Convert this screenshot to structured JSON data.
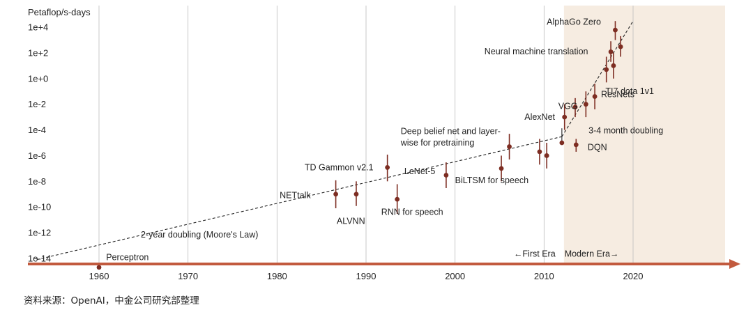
{
  "colors": {
    "modern_bg": "#f6ece1",
    "marker": "#7d2d22",
    "axis_arrow": "#c25a3e",
    "grid": "#bdbdbd",
    "trend": "#222222",
    "text": "#222222"
  },
  "footer": {
    "source": "资料来源：OpenAI，中金公司研究部整理"
  },
  "chart_data": {
    "type": "scatter",
    "ylabel": "Petaflop/s-days",
    "y_scale": "log",
    "ylim": [
      1e-15,
      100000.0
    ],
    "xlim": [
      1953,
      2030
    ],
    "x_ticks": [
      1960,
      1970,
      1980,
      1990,
      2000,
      2010,
      2020
    ],
    "y_ticks": [
      {
        "value": 10000.0,
        "label": "1e+4"
      },
      {
        "value": 100.0,
        "label": "1e+2"
      },
      {
        "value": 1.0,
        "label": "1e+0"
      },
      {
        "value": 0.01,
        "label": "1e-2"
      },
      {
        "value": 0.0001,
        "label": "1e-4"
      },
      {
        "value": 1e-06,
        "label": "1e-6"
      },
      {
        "value": 1e-08,
        "label": "1e-8"
      },
      {
        "value": 1e-10,
        "label": "1e-10"
      },
      {
        "value": 1e-12,
        "label": "1e-12"
      },
      {
        "value": 1e-14,
        "label": "1e-14"
      }
    ],
    "grid": "vertical",
    "modern_era_start": 2012,
    "points": [
      {
        "x": 1960.0,
        "y": 2e-15,
        "low": 2e-15,
        "high": 2e-15
      },
      {
        "x": 1986.6,
        "y": 1e-09,
        "low": 8e-11,
        "high": 1.2e-08
      },
      {
        "x": 1988.9,
        "y": 1e-09,
        "low": 1.2e-10,
        "high": 1e-08
      },
      {
        "x": 1992.4,
        "y": 1.2e-07,
        "low": 1e-08,
        "high": 1.2e-06
      },
      {
        "x": 1993.5,
        "y": 4e-10,
        "low": 3e-11,
        "high": 6e-09
      },
      {
        "x": 1999.0,
        "y": 3e-08,
        "low": 3e-09,
        "high": 3e-07
      },
      {
        "x": 2005.2,
        "y": 1e-07,
        "low": 1e-08,
        "high": 1e-06
      },
      {
        "x": 2006.1,
        "y": 5e-06,
        "low": 5e-07,
        "high": 5e-05
      },
      {
        "x": 2009.5,
        "y": 2e-06,
        "low": 2e-07,
        "high": 2e-05
      },
      {
        "x": 2010.3,
        "y": 1e-06,
        "low": 1e-07,
        "high": 1e-05
      },
      {
        "x": 2012.0,
        "y": 1e-05,
        "low": 1e-05,
        "high": 1e-05
      },
      {
        "x": 2012.3,
        "y": 0.001,
        "low": 0.0001,
        "high": 0.01
      },
      {
        "x": 2013.5,
        "y": 0.006,
        "low": 0.001,
        "high": 0.03
      },
      {
        "x": 2013.6,
        "y": 7e-06,
        "low": 2e-06,
        "high": 2e-05
      },
      {
        "x": 2014.7,
        "y": 0.01,
        "low": 0.001,
        "high": 0.1
      },
      {
        "x": 2015.7,
        "y": 0.04,
        "low": 0.004,
        "high": 0.4
      },
      {
        "x": 2017.0,
        "y": 5,
        "low": 0.5,
        "high": 50.0
      },
      {
        "x": 2017.5,
        "y": 120.0,
        "low": 20.0,
        "high": 800.0
      },
      {
        "x": 2017.8,
        "y": 10.0,
        "low": 1.0,
        "high": 100.0
      },
      {
        "x": 2018.0,
        "y": 6000.0,
        "low": 1000.0,
        "high": 30000.0
      },
      {
        "x": 2018.6,
        "y": 300.0,
        "low": 50.0,
        "high": 2000.0
      }
    ],
    "trend_lines": [
      {
        "name": "2-year doubling (Moore's Law)",
        "from": [
          1953,
          8e-15
        ],
        "to": [
          2012,
          3e-05
        ]
      },
      {
        "name": "3-4 month doubling",
        "from": [
          2012,
          3e-05
        ],
        "to": [
          2020,
          30000.0
        ]
      }
    ],
    "annotations": [
      {
        "text": "Perceptron",
        "x": 1960.8,
        "y": 1.2e-14
      },
      {
        "text": "NETtalk",
        "x": 1980.3,
        "y": 8e-10
      },
      {
        "text": "ALVNN",
        "x": 1986.7,
        "y": 8e-12
      },
      {
        "text": "TD Gammon v2.1",
        "x": 1983.1,
        "y": 1.2e-07
      },
      {
        "text": "RNN for speech",
        "x": 1991.7,
        "y": 4e-11
      },
      {
        "text": "LeNet-5",
        "x": 1994.3,
        "y": 6e-08
      },
      {
        "text": "BiLTSM for speech",
        "x": 2000.0,
        "y": 1.2e-08
      },
      {
        "text": "Deep belief net and layer-",
        "x": 1993.9,
        "y": 8e-05
      },
      {
        "text": "wise for pretraining",
        "x": 1993.9,
        "y": 1e-05
      },
      {
        "text": "AlexNet",
        "x": 2007.8,
        "y": 0.001
      },
      {
        "text": "VGG",
        "x": 2011.6,
        "y": 0.007
      },
      {
        "text": "ResNets",
        "x": 2016.4,
        "y": 0.06
      },
      {
        "text": "TI7 dota 1v1",
        "x": 2016.9,
        "y": 0.1
      },
      {
        "text": "DQN",
        "x": 2014.9,
        "y": 4.5e-06
      },
      {
        "text": "3-4 month doubling",
        "x": 2015.0,
        "y": 9e-05
      },
      {
        "text": "Neural machine translation",
        "x": 2003.3,
        "y": 130.0
      },
      {
        "text": "AlphaGo Zero",
        "x": 2010.3,
        "y": 25000.0
      },
      {
        "text": "2-year doubling (Moore's Law)",
        "x": 1964.7,
        "y": 7e-13
      },
      {
        "text": "←First Era",
        "x": 2006.6,
        "y": 2.2e-14
      },
      {
        "text": "Modern Era→",
        "x": 2012.3,
        "y": 2.2e-14
      }
    ]
  }
}
